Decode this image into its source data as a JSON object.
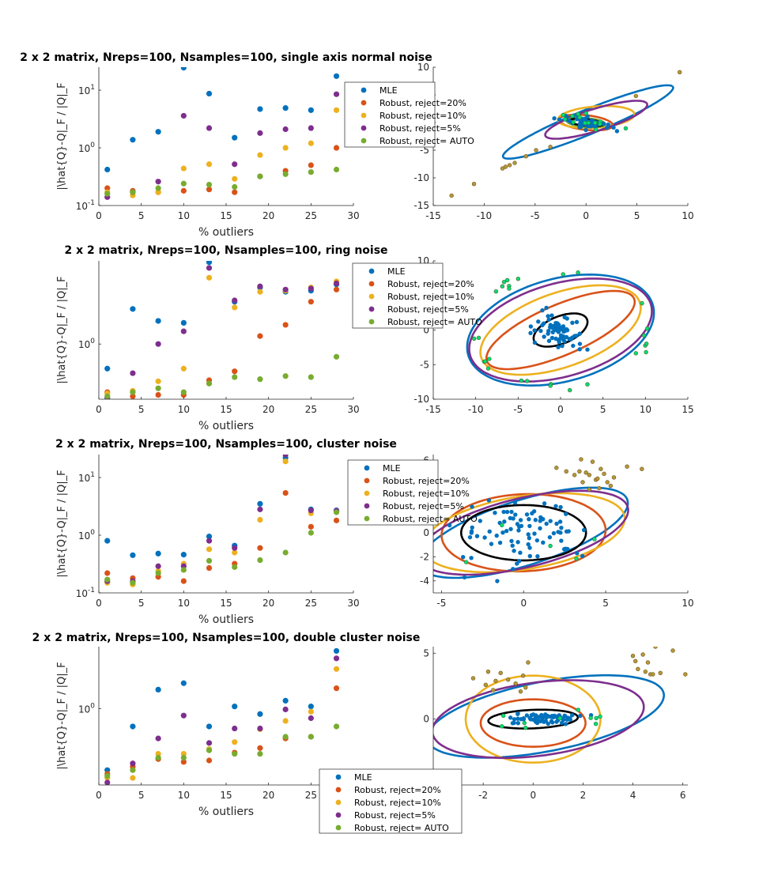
{
  "colors": {
    "series": [
      "#0072BD",
      "#D95319",
      "#EDB120",
      "#7E2F8E",
      "#77AC30"
    ],
    "inlier": "#0072BD",
    "outlier_fill": "#00E070",
    "far_outlier": "#B8963A",
    "true_cov": "#000000",
    "axis": "#262626"
  },
  "legend_labels": [
    "MLE",
    "Robust, reject=20%",
    "Robust, reject=10%",
    "Robust, reject=5%",
    "Robust, reject= AUTO"
  ],
  "chart_data": [
    {
      "type": "scatter",
      "title": "2 x 2 matrix, Nreps=100, Nsamples=100, single axis normal noise",
      "xlabel": "% outliers",
      "ylabel": "|\\hat{Q}-Q|_F / |Q|_F",
      "xlim": [
        0,
        30
      ],
      "ylim": [
        0.1,
        25
      ],
      "yscale": "log",
      "xticks": [
        "0",
        "5",
        "10",
        "15",
        "20",
        "25",
        "30"
      ],
      "yticks": [
        {
          "v": 0.1,
          "b": "10",
          "e": "-1"
        },
        {
          "v": 1,
          "b": "10",
          "e": "0"
        },
        {
          "v": 10,
          "b": "10",
          "e": "1"
        }
      ],
      "legend": "right",
      "x": [
        1,
        4,
        7,
        10,
        13,
        16,
        19,
        22,
        25,
        28
      ],
      "series": [
        {
          "name": "MLE",
          "values": [
            0.42,
            1.38,
            1.9,
            24.5,
            8.7,
            1.5,
            4.7,
            4.9,
            4.5,
            17.5
          ]
        },
        {
          "name": "Robust, reject=20%",
          "values": [
            0.2,
            0.18,
            0.17,
            0.18,
            0.19,
            0.17,
            0.32,
            0.4,
            0.5,
            1.0
          ]
        },
        {
          "name": "Robust, reject=10%",
          "values": [
            0.17,
            0.15,
            0.17,
            0.44,
            0.52,
            0.29,
            0.75,
            1.0,
            1.2,
            4.5
          ]
        },
        {
          "name": "Robust, reject=5%",
          "values": [
            0.14,
            0.17,
            0.26,
            3.6,
            2.2,
            0.52,
            1.8,
            2.1,
            2.2,
            8.5
          ]
        },
        {
          "name": "Robust, reject= AUTO",
          "values": [
            0.16,
            0.17,
            0.2,
            0.24,
            0.23,
            0.21,
            0.32,
            0.35,
            0.38,
            0.42
          ]
        }
      ]
    },
    {
      "type": "scatter",
      "title": "",
      "xlim": [
        -15,
        10
      ],
      "ylim": [
        -15,
        10
      ],
      "xticks": [
        "-15",
        "-10",
        "-5",
        "0",
        "5",
        "10"
      ],
      "yticks": [
        "-15",
        "-10",
        "-5",
        "0",
        "5",
        "10"
      ],
      "inliers": {
        "cx": 0,
        "cy": 0,
        "sx": 1.2,
        "sy": 0.5,
        "rot": -0.38,
        "n": 60
      },
      "outliers": {
        "cx": 0,
        "cy": 0,
        "sx": 1.6,
        "sy": 0.7,
        "rot": -0.35,
        "n": 14
      },
      "far_outliers": [
        [
          -13.2,
          -13.2
        ],
        [
          -11.0,
          -11.1
        ],
        [
          -8.2,
          -8.3
        ],
        [
          -7.9,
          -8.0
        ],
        [
          -7.5,
          -7.7
        ],
        [
          -7.0,
          -7.3
        ],
        [
          -5.9,
          -6.1
        ],
        [
          -4.9,
          -5.0
        ],
        [
          -3.5,
          -4.4
        ],
        [
          4.9,
          4.8
        ],
        [
          9.2,
          9.1
        ]
      ],
      "ellipses": [
        {
          "series": 0,
          "cx": 0.2,
          "cy": 0.1,
          "a": 10.5,
          "b": 1.9,
          "angle": 38
        },
        {
          "series": 1,
          "cx": 0,
          "cy": 0,
          "a": 2.7,
          "b": 1.3,
          "angle": -14
        },
        {
          "series": 2,
          "cx": 1,
          "cy": 1,
          "a": 3.8,
          "b": 1.9,
          "angle": 10
        },
        {
          "series": 3,
          "cx": 1,
          "cy": 0.5,
          "a": 5.8,
          "b": 1.8,
          "angle": 32
        },
        {
          "series": 4,
          "cx": 0,
          "cy": 0,
          "a": 1.9,
          "b": 0.8,
          "angle": -10
        },
        {
          "series": "true",
          "cx": 0,
          "cy": 0,
          "a": 1.7,
          "b": 0.6,
          "angle": -12
        }
      ]
    },
    {
      "type": "scatter",
      "title": "2 x 2 matrix, Nreps=100, Nsamples=100, ring noise",
      "xlabel": "% outliers",
      "ylabel": "|\\hat{Q}-Q|_F / |Q|_F",
      "xlim": [
        0,
        30
      ],
      "ylim": [
        0.38,
        4.3
      ],
      "yscale": "log",
      "xticks": [
        "0",
        "5",
        "10",
        "15",
        "20",
        "25",
        "30"
      ],
      "yticks": [
        {
          "v": 1,
          "b": "10",
          "e": "0"
        }
      ],
      "legend": "right",
      "x": [
        1,
        4,
        7,
        10,
        13,
        16,
        19,
        22,
        25,
        28
      ],
      "series": [
        {
          "name": "MLE",
          "values": [
            0.65,
            1.85,
            1.5,
            1.45,
            4.2,
            2.1,
            2.7,
            2.5,
            2.55,
            2.85
          ]
        },
        {
          "name": "Robust, reject=20%",
          "values": [
            0.43,
            0.4,
            0.41,
            0.41,
            0.53,
            0.62,
            1.15,
            1.4,
            2.1,
            2.6
          ]
        },
        {
          "name": "Robust, reject=10%",
          "values": [
            0.42,
            0.44,
            0.52,
            0.65,
            3.2,
            1.9,
            2.5,
            2.55,
            2.7,
            3.0
          ]
        },
        {
          "name": "Robust, reject=5%",
          "values": [
            0.39,
            0.6,
            1.0,
            1.25,
            3.8,
            2.15,
            2.75,
            2.6,
            2.65,
            2.9
          ]
        },
        {
          "name": "Robust, reject= AUTO",
          "values": [
            0.4,
            0.43,
            0.46,
            0.43,
            0.5,
            0.56,
            0.54,
            0.57,
            0.56,
            0.8
          ]
        }
      ]
    },
    {
      "type": "scatter",
      "title": "",
      "xlim": [
        -15,
        15
      ],
      "ylim": [
        -10,
        10
      ],
      "xticks": [
        "-15",
        "-10",
        "-5",
        "0",
        "5",
        "10",
        "15"
      ],
      "yticks": [
        "-10",
        "-5",
        "0",
        "5",
        "10"
      ],
      "inliers": {
        "cx": 0,
        "cy": 0,
        "sx": 1.5,
        "sy": 1.1,
        "rot": -0.5,
        "n": 75
      },
      "ring": {
        "cx": 0,
        "cy": 0,
        "rx": 10.3,
        "ry": 8.3,
        "n": 28
      },
      "ellipses": [
        {
          "series": 0,
          "cx": 0,
          "cy": 0,
          "a": 11.5,
          "b": 7.3,
          "angle": 22
        },
        {
          "series": 1,
          "cx": 0,
          "cy": 0,
          "a": 9.8,
          "b": 3.5,
          "angle": 29
        },
        {
          "series": 2,
          "cx": 0,
          "cy": 0,
          "a": 10.2,
          "b": 5.2,
          "angle": 26
        },
        {
          "series": 3,
          "cx": 0,
          "cy": 0,
          "a": 11.3,
          "b": 6.6,
          "angle": 22
        },
        {
          "series": "true",
          "cx": 0,
          "cy": 0,
          "a": 3.5,
          "b": 1.9,
          "angle": 30
        }
      ]
    },
    {
      "type": "scatter",
      "title": "2 x 2 matrix, Nreps=100, Nsamples=100, cluster noise",
      "xlabel": "% outliers",
      "ylabel": "|\\hat{Q}-Q|_F / |Q|_F",
      "xlim": [
        0,
        30
      ],
      "ylim": [
        0.1,
        25
      ],
      "yscale": "log",
      "xticks": [
        "0",
        "5",
        "10",
        "15",
        "20",
        "25",
        "30"
      ],
      "yticks": [
        {
          "v": 0.1,
          "b": "10",
          "e": "-1"
        },
        {
          "v": 1,
          "b": "10",
          "e": "0"
        },
        {
          "v": 10,
          "b": "10",
          "e": "1"
        }
      ],
      "legend": "right",
      "x": [
        1,
        4,
        7,
        10,
        13,
        16,
        19,
        22,
        25,
        28
      ],
      "series": [
        {
          "name": "MLE",
          "values": [
            0.8,
            0.45,
            0.48,
            0.46,
            0.95,
            0.66,
            3.5,
            22,
            2.8,
            2.7
          ]
        },
        {
          "name": "Robust, reject=20%",
          "values": [
            0.22,
            0.18,
            0.19,
            0.16,
            0.27,
            0.32,
            0.6,
            5.4,
            1.4,
            1.8
          ]
        },
        {
          "name": "Robust, reject=10%",
          "values": [
            0.15,
            0.14,
            0.24,
            0.32,
            0.57,
            0.5,
            1.85,
            19,
            2.4,
            2.6
          ]
        },
        {
          "name": "Robust, reject=5%",
          "values": [
            0.16,
            0.16,
            0.29,
            0.29,
            0.8,
            0.6,
            2.8,
            25,
            2.7,
            2.65
          ]
        },
        {
          "name": "Robust, reject= AUTO",
          "values": [
            0.17,
            0.15,
            0.22,
            0.25,
            0.36,
            0.28,
            0.37,
            0.5,
            1.1,
            2.5
          ]
        }
      ]
    },
    {
      "type": "scatter",
      "title": "",
      "xlim": [
        -5.5,
        10
      ],
      "ylim": [
        -5,
        6.5
      ],
      "xticks": [
        "-5",
        "0",
        "5",
        "10"
      ],
      "yticks": [
        "-4",
        "-2",
        "0",
        "2",
        "4",
        "6"
      ],
      "inliers": {
        "cx": 0,
        "cy": 0,
        "sx": 1.9,
        "sy": 1.3,
        "rot": 0,
        "n": 85
      },
      "far_outliers": [
        [
          2.0,
          5.4
        ],
        [
          2.6,
          5.1
        ],
        [
          3.1,
          4.8
        ],
        [
          3.4,
          5.1
        ],
        [
          3.5,
          6.1
        ],
        [
          3.6,
          4.2
        ],
        [
          3.8,
          5.0
        ],
        [
          4.0,
          3.6
        ],
        [
          4.2,
          5.9
        ],
        [
          4.4,
          4.4
        ],
        [
          4.6,
          3.7
        ],
        [
          4.7,
          5.3
        ],
        [
          4.9,
          4.9
        ],
        [
          5.1,
          4.2
        ],
        [
          5.3,
          3.9
        ],
        [
          5.5,
          4.6
        ],
        [
          6.3,
          5.5
        ],
        [
          7.2,
          5.3
        ],
        [
          4.5,
          4.5
        ],
        [
          4.0,
          4.8
        ]
      ],
      "outliers": {
        "cx": 0,
        "cy": 0,
        "sx": 3.5,
        "sy": 2.3,
        "rot": 0.2,
        "n": 5
      },
      "ellipses": [
        {
          "series": 0,
          "cx": 0,
          "cy": 0,
          "a": 6.9,
          "b": 2.6,
          "angle": 25
        },
        {
          "series": 1,
          "cx": 0,
          "cy": 0,
          "a": 5.0,
          "b": 3.2,
          "angle": 4
        },
        {
          "series": 2,
          "cx": 0,
          "cy": 0,
          "a": 6.3,
          "b": 3.0,
          "angle": 14
        },
        {
          "series": 3,
          "cx": 0,
          "cy": 0,
          "a": 6.7,
          "b": 2.8,
          "angle": 20
        },
        {
          "series": "true",
          "cx": 0,
          "cy": 0,
          "a": 3.8,
          "b": 2.3,
          "angle": 0
        }
      ]
    },
    {
      "type": "scatter",
      "title": "2 x 2 matrix, Nreps=100, Nsamples=100, double cluster noise",
      "xlabel": "% outliers",
      "ylabel": "|\\hat{Q}-Q|_F / |Q|_F",
      "xlim": [
        0,
        30
      ],
      "ylim": [
        0.17,
        4.2
      ],
      "yscale": "log",
      "xticks": [
        "0",
        "5",
        "10",
        "15",
        "20",
        "25",
        "30"
      ],
      "yticks": [
        {
          "v": 1,
          "b": "10",
          "e": "0"
        }
      ],
      "legend": "bottom-right",
      "x": [
        1,
        4,
        7,
        10,
        13,
        16,
        19,
        22,
        25,
        28
      ],
      "series": [
        {
          "name": "MLE",
          "values": [
            0.24,
            0.66,
            1.55,
            1.8,
            0.66,
            1.05,
            0.88,
            1.2,
            1.05,
            3.8
          ]
        },
        {
          "name": "Robust, reject=20%",
          "values": [
            0.22,
            0.26,
            0.31,
            0.29,
            0.3,
            0.36,
            0.4,
            0.5,
            0.52,
            1.6
          ]
        },
        {
          "name": "Robust, reject=10%",
          "values": [
            0.2,
            0.2,
            0.35,
            0.35,
            0.39,
            0.46,
            0.62,
            0.75,
            0.93,
            2.5
          ]
        },
        {
          "name": "Robust, reject=5%",
          "values": [
            0.18,
            0.28,
            0.5,
            0.85,
            0.45,
            0.63,
            0.63,
            0.98,
            0.8,
            3.2
          ]
        },
        {
          "name": "Robust, reject= AUTO",
          "values": [
            0.21,
            0.24,
            0.32,
            0.32,
            0.38,
            0.35,
            0.35,
            0.52,
            0.52,
            0.66
          ]
        }
      ]
    },
    {
      "type": "scatter",
      "title": "",
      "xlim": [
        -4,
        6.2
      ],
      "ylim": [
        -5,
        5.5
      ],
      "xticks": [
        "-4",
        "-2",
        "0",
        "2",
        "4",
        "6"
      ],
      "yticks": [
        "-5",
        "0",
        "5"
      ],
      "inliers": {
        "cx": 0.3,
        "cy": 0,
        "sx": 0.75,
        "sy": 0.22,
        "rot": 0.1,
        "n": 70
      },
      "far_outliers": [
        [
          -2.4,
          3.1
        ],
        [
          -1.9,
          2.6
        ],
        [
          -1.6,
          2.2
        ],
        [
          -1.3,
          3.5
        ],
        [
          -1.0,
          3.0
        ],
        [
          -0.7,
          2.7
        ],
        [
          -0.4,
          3.3
        ],
        [
          -0.3,
          2.4
        ],
        [
          -0.2,
          4.3
        ],
        [
          -0.5,
          2.1
        ],
        [
          -1.8,
          3.6
        ],
        [
          -1.5,
          2.9
        ],
        [
          4.0,
          4.8
        ],
        [
          4.1,
          4.4
        ],
        [
          4.2,
          3.8
        ],
        [
          4.5,
          3.6
        ],
        [
          4.6,
          4.3
        ],
        [
          4.7,
          3.4
        ],
        [
          4.8,
          3.4
        ],
        [
          4.9,
          5.5
        ],
        [
          5.1,
          3.5
        ],
        [
          5.6,
          5.2
        ],
        [
          6.1,
          3.4
        ],
        [
          4.4,
          4.9
        ]
      ],
      "outliers": {
        "cx": 0.5,
        "cy": 0,
        "sx": 1.2,
        "sy": 0.3,
        "rot": 0.1,
        "n": 10
      },
      "ellipses": [
        {
          "series": 0,
          "cx": 0.5,
          "cy": 0.2,
          "a": 5.1,
          "b": 2.5,
          "angle": 25
        },
        {
          "series": 1,
          "cx": 0,
          "cy": -0.3,
          "a": 2.1,
          "b": 1.8,
          "angle": 0
        },
        {
          "series": 2,
          "cx": 0,
          "cy": 0,
          "a": 2.7,
          "b": 3.3,
          "angle": 0
        },
        {
          "series": 3,
          "cx": 0.2,
          "cy": 0,
          "a": 4.4,
          "b": 2.7,
          "angle": 20
        },
        {
          "series": "true",
          "cx": 0,
          "cy": 0,
          "a": 1.8,
          "b": 0.7,
          "angle": 5
        }
      ]
    }
  ]
}
